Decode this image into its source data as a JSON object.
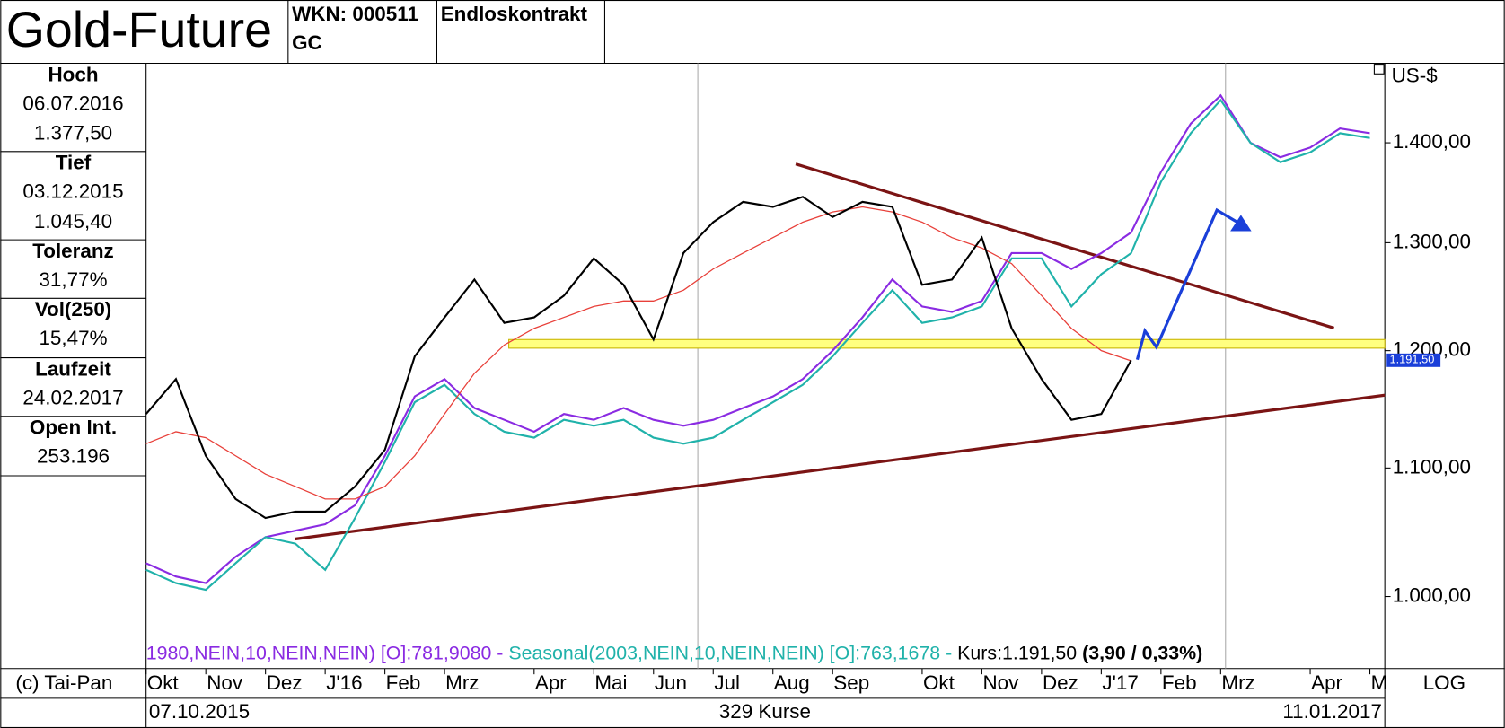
{
  "header": {
    "title": "Gold-Future",
    "wkn": "WKN: 000511",
    "symbol": "GC",
    "contract": "Endloskontrakt"
  },
  "sidebar": [
    {
      "label": "Hoch",
      "lines": [
        "06.07.2016",
        "1.377,50"
      ]
    },
    {
      "label": "Tief",
      "lines": [
        "03.12.2015",
        "1.045,40"
      ]
    },
    {
      "label": "Toleranz",
      "lines": [
        "31,77%"
      ]
    },
    {
      "label": "Vol(250)",
      "lines": [
        "15,47%"
      ]
    },
    {
      "label": "Laufzeit",
      "lines": [
        "24.02.2017"
      ]
    },
    {
      "label": "Open Int.",
      "lines": [
        "253.196"
      ]
    }
  ],
  "footer": {
    "copyright": "(c) Tai-Pan",
    "start": "07.10.2015",
    "count": "329 Kurse",
    "end": "11.01.2017",
    "scale": "LOG"
  },
  "chart_data": {
    "type": "line",
    "y_label": "US-$",
    "log": true,
    "ylim": [
      948,
      1485
    ],
    "yticks": [
      {
        "value": 1000,
        "label": "1.000,00"
      },
      {
        "value": 1100,
        "label": "1.100,00"
      },
      {
        "value": 1200,
        "label": "1.200,00"
      },
      {
        "value": 1300,
        "label": "1.300,00"
      },
      {
        "value": 1400,
        "label": "1.400,00"
      }
    ],
    "last_label": "1.191,50",
    "categories": [
      "Okt",
      null,
      "Nov",
      null,
      "Dez",
      null,
      "J'16",
      null,
      "Feb",
      null,
      "Mrz",
      null,
      null,
      "Apr",
      null,
      "Mai",
      null,
      "Jun",
      null,
      "Jul",
      null,
      "Aug",
      null,
      "Sep",
      null,
      null,
      "Okt",
      null,
      "Nov",
      null,
      "Dez",
      null,
      "J'17",
      null,
      "Feb",
      null,
      "Mrz",
      null,
      null,
      "Apr",
      null,
      "M"
    ],
    "series": [
      {
        "color": "#8a2be2",
        "values": [
          1025,
          1015,
          1010,
          1030,
          1045,
          1050,
          1055,
          1070,
          1110,
          1160,
          1175,
          1150,
          1140,
          1130,
          1145,
          1140,
          1150,
          1140,
          1135,
          1140,
          1150,
          1160,
          1175,
          1200,
          1230,
          1265,
          1240,
          1235,
          1245,
          1290,
          1290,
          1275,
          1290,
          1310,
          1370,
          1420,
          1450,
          1400,
          1385,
          1395,
          1415,
          1410
        ]
      },
      {
        "color": "#20b2aa",
        "values": [
          1020,
          1010,
          1005,
          1025,
          1045,
          1040,
          1020,
          1060,
          1105,
          1155,
          1170,
          1145,
          1130,
          1125,
          1140,
          1135,
          1140,
          1125,
          1120,
          1125,
          1140,
          1155,
          1170,
          1195,
          1225,
          1255,
          1225,
          1230,
          1240,
          1285,
          1285,
          1240,
          1270,
          1290,
          1360,
          1410,
          1445,
          1400,
          1380,
          1390,
          1410,
          1405
        ]
      },
      {
        "color": "#e8403a",
        "values": [
          1120,
          1130,
          1125,
          1110,
          1095,
          1085,
          1075,
          1075,
          1085,
          1110,
          1145,
          1180,
          1205,
          1220,
          1230,
          1240,
          1245,
          1245,
          1255,
          1275,
          1290,
          1305,
          1320,
          1330,
          1335,
          1330,
          1320,
          1305,
          1295,
          1280,
          1250,
          1220,
          1200,
          1191,
          null,
          null,
          null,
          null,
          null,
          null,
          null,
          null
        ]
      },
      {
        "color": "#000000",
        "values": [
          1145,
          1175,
          1110,
          1075,
          1060,
          1065,
          1065,
          1085,
          1115,
          1195,
          1230,
          1265,
          1225,
          1230,
          1250,
          1285,
          1260,
          1210,
          1290,
          1320,
          1340,
          1335,
          1345,
          1325,
          1340,
          1335,
          1260,
          1265,
          1305,
          1220,
          1175,
          1140,
          1145,
          1191.5,
          null,
          null,
          null,
          null,
          null,
          null,
          null,
          null
        ]
      }
    ],
    "legend": [
      {
        "text": "1980,NEIN,10,NEIN,NEIN) [O]:781,9080 - ",
        "color": "#8a2be2"
      },
      {
        "text": "Seasonal(2003,NEIN,10,NEIN,NEIN) [O]:763,1678 - ",
        "color": "#20b2aa"
      },
      {
        "text": "Kurs:1.191,50 ",
        "color": "#000000"
      },
      {
        "text": "(3,90 / 0,33%)",
        "color": "#000000",
        "bold": true
      }
    ]
  }
}
